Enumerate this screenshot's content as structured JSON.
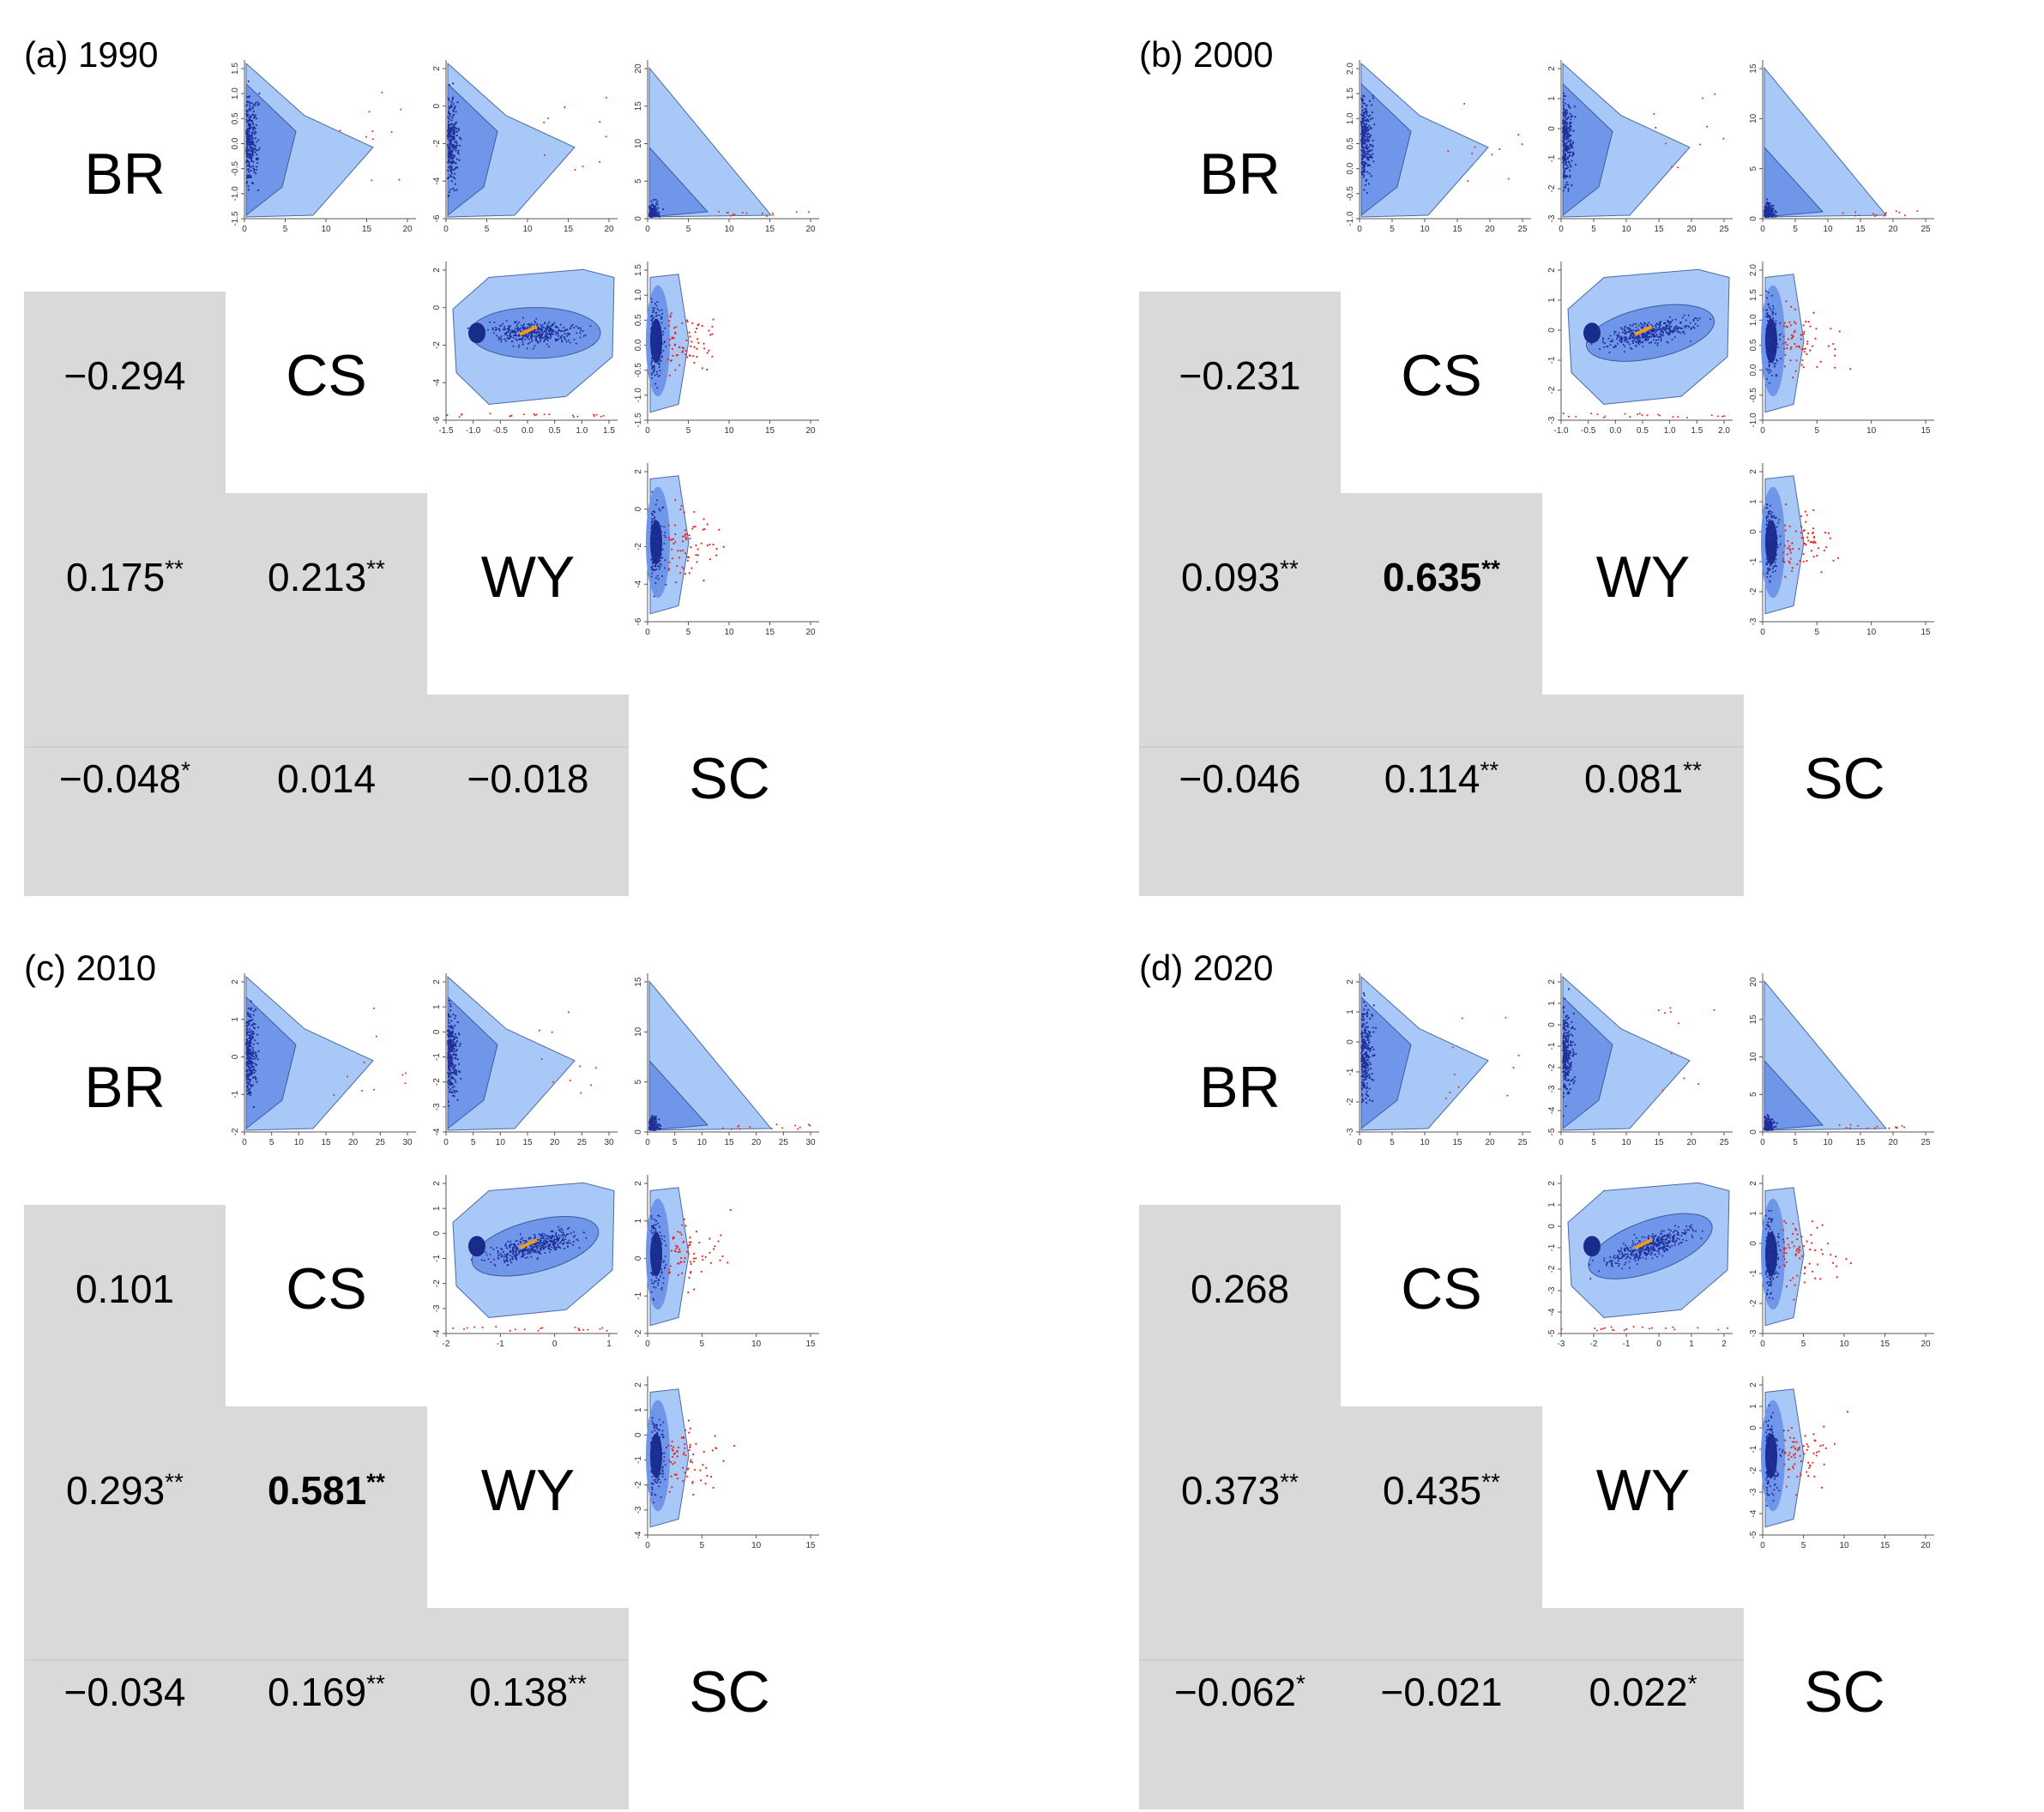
{
  "colors": {
    "outer_hull": "#a8c8f8",
    "inner_hull": "#6f96e8",
    "core": "#1a2c8a",
    "points": "#1f2f9a",
    "outliers": "#e8261f",
    "center": "#f29b1a",
    "table_gray": "#d9d9d9"
  },
  "variables": [
    "BR",
    "CS",
    "WY",
    "SC"
  ],
  "chart_data": [
    {
      "type": "scatter-matrix",
      "title": "(a) 1990",
      "variables": [
        "BR",
        "CS",
        "WY",
        "SC"
      ],
      "correlations": [
        {
          "pair": [
            "BR",
            "CS"
          ],
          "value": "−0.294",
          "sig": "",
          "bold": false
        },
        {
          "pair": [
            "BR",
            "WY"
          ],
          "value": "0.175",
          "sig": "**",
          "bold": false
        },
        {
          "pair": [
            "CS",
            "WY"
          ],
          "value": "0.213",
          "sig": "**",
          "bold": false
        },
        {
          "pair": [
            "BR",
            "SC"
          ],
          "value": "−0.048",
          "sig": "*",
          "bold": false
        },
        {
          "pair": [
            "CS",
            "SC"
          ],
          "value": "0.014",
          "sig": "",
          "bold": false
        },
        {
          "pair": [
            "WY",
            "SC"
          ],
          "value": "−0.018",
          "sig": "",
          "bold": false
        }
      ],
      "scatter_axes": [
        {
          "pair": [
            "BR",
            "CS"
          ],
          "xticks": [
            "0",
            "5",
            "10",
            "15",
            "20"
          ],
          "yticks": [
            "-1.5",
            "-1.0",
            "-0.5",
            "0.0",
            "0.5",
            "1.0",
            "1.5"
          ]
        },
        {
          "pair": [
            "BR",
            "WY"
          ],
          "xticks": [
            "0",
            "5",
            "10",
            "15",
            "20"
          ],
          "yticks": [
            "-6",
            "-4",
            "-2",
            "0",
            "2"
          ]
        },
        {
          "pair": [
            "BR",
            "SC"
          ],
          "xticks": [
            "0",
            "5",
            "10",
            "15",
            "20"
          ],
          "yticks": [
            "0",
            "5",
            "10",
            "15",
            "20"
          ]
        },
        {
          "pair": [
            "CS",
            "WY"
          ],
          "xticks": [
            "-1.5",
            "-1.0",
            "-0.5",
            "0.0",
            "0.5",
            "1.0",
            "1.5"
          ],
          "yticks": [
            "-6",
            "-4",
            "-2",
            "0",
            "2"
          ]
        },
        {
          "pair": [
            "CS",
            "SC"
          ],
          "xticks": [
            "0",
            "5",
            "10",
            "15",
            "20"
          ],
          "yticks": [
            "-1.5",
            "-1.0",
            "-0.5",
            "0.0",
            "0.5",
            "1.0",
            "1.5"
          ]
        },
        {
          "pair": [
            "WY",
            "SC"
          ],
          "xticks": [
            "0",
            "5",
            "10",
            "15",
            "20"
          ],
          "yticks": [
            "-6",
            "-4",
            "-2",
            "0",
            "2"
          ]
        }
      ]
    },
    {
      "type": "scatter-matrix",
      "title": "(b) 2000",
      "variables": [
        "BR",
        "CS",
        "WY",
        "SC"
      ],
      "correlations": [
        {
          "pair": [
            "BR",
            "CS"
          ],
          "value": "−0.231",
          "sig": "",
          "bold": false
        },
        {
          "pair": [
            "BR",
            "WY"
          ],
          "value": "0.093",
          "sig": "**",
          "bold": false
        },
        {
          "pair": [
            "CS",
            "WY"
          ],
          "value": "0.635",
          "sig": "**",
          "bold": true
        },
        {
          "pair": [
            "BR",
            "SC"
          ],
          "value": "−0.046",
          "sig": "",
          "bold": false
        },
        {
          "pair": [
            "CS",
            "SC"
          ],
          "value": "0.114",
          "sig": "**",
          "bold": false
        },
        {
          "pair": [
            "WY",
            "SC"
          ],
          "value": "0.081",
          "sig": "**",
          "bold": false
        }
      ],
      "scatter_axes": [
        {
          "pair": [
            "BR",
            "CS"
          ],
          "xticks": [
            "0",
            "5",
            "10",
            "15",
            "20",
            "25"
          ],
          "yticks": [
            "-1.0",
            "-0.5",
            "0.0",
            "0.5",
            "1.0",
            "1.5",
            "2.0"
          ]
        },
        {
          "pair": [
            "BR",
            "WY"
          ],
          "xticks": [
            "0",
            "5",
            "10",
            "15",
            "20",
            "25"
          ],
          "yticks": [
            "-3",
            "-2",
            "-1",
            "0",
            "1",
            "2"
          ]
        },
        {
          "pair": [
            "BR",
            "SC"
          ],
          "xticks": [
            "0",
            "5",
            "10",
            "15",
            "20",
            "25"
          ],
          "yticks": [
            "0",
            "5",
            "10",
            "15"
          ]
        },
        {
          "pair": [
            "CS",
            "WY"
          ],
          "xticks": [
            "-1.0",
            "-0.5",
            "0.0",
            "0.5",
            "1.0",
            "1.5",
            "2.0"
          ],
          "yticks": [
            "-3",
            "-2",
            "-1",
            "0",
            "1",
            "2"
          ]
        },
        {
          "pair": [
            "CS",
            "SC"
          ],
          "xticks": [
            "0",
            "5",
            "10",
            "15"
          ],
          "yticks": [
            "-1.0",
            "-0.5",
            "0.0",
            "0.5",
            "1.0",
            "1.5",
            "2.0"
          ]
        },
        {
          "pair": [
            "WY",
            "SC"
          ],
          "xticks": [
            "0",
            "5",
            "10",
            "15"
          ],
          "yticks": [
            "-3",
            "-2",
            "-1",
            "0",
            "1",
            "2"
          ]
        }
      ]
    },
    {
      "type": "scatter-matrix",
      "title": "(c) 2010",
      "variables": [
        "BR",
        "CS",
        "WY",
        "SC"
      ],
      "correlations": [
        {
          "pair": [
            "BR",
            "CS"
          ],
          "value": "0.101",
          "sig": "",
          "bold": false
        },
        {
          "pair": [
            "BR",
            "WY"
          ],
          "value": "0.293",
          "sig": "**",
          "bold": false
        },
        {
          "pair": [
            "CS",
            "WY"
          ],
          "value": "0.581",
          "sig": "**",
          "bold": true
        },
        {
          "pair": [
            "BR",
            "SC"
          ],
          "value": "−0.034",
          "sig": "",
          "bold": false
        },
        {
          "pair": [
            "CS",
            "SC"
          ],
          "value": "0.169",
          "sig": "**",
          "bold": false
        },
        {
          "pair": [
            "WY",
            "SC"
          ],
          "value": "0.138",
          "sig": "**",
          "bold": false
        }
      ],
      "scatter_axes": [
        {
          "pair": [
            "BR",
            "CS"
          ],
          "xticks": [
            "0",
            "5",
            "10",
            "15",
            "20",
            "25",
            "30"
          ],
          "yticks": [
            "-2",
            "-1",
            "0",
            "1",
            "2"
          ]
        },
        {
          "pair": [
            "BR",
            "WY"
          ],
          "xticks": [
            "0",
            "5",
            "10",
            "15",
            "20",
            "25",
            "30"
          ],
          "yticks": [
            "-4",
            "-3",
            "-2",
            "-1",
            "0",
            "1",
            "2"
          ]
        },
        {
          "pair": [
            "BR",
            "SC"
          ],
          "xticks": [
            "0",
            "5",
            "10",
            "15",
            "20",
            "25",
            "30"
          ],
          "yticks": [
            "0",
            "5",
            "10",
            "15"
          ]
        },
        {
          "pair": [
            "CS",
            "WY"
          ],
          "xticks": [
            "-2",
            "-1",
            "0",
            "1"
          ],
          "yticks": [
            "-4",
            "-3",
            "-2",
            "-1",
            "0",
            "1",
            "2"
          ]
        },
        {
          "pair": [
            "CS",
            "SC"
          ],
          "xticks": [
            "0",
            "5",
            "10",
            "15"
          ],
          "yticks": [
            "-2",
            "-1",
            "0",
            "1",
            "2"
          ]
        },
        {
          "pair": [
            "WY",
            "SC"
          ],
          "xticks": [
            "0",
            "5",
            "10",
            "15"
          ],
          "yticks": [
            "-4",
            "-3",
            "-2",
            "-1",
            "0",
            "1",
            "2"
          ]
        }
      ]
    },
    {
      "type": "scatter-matrix",
      "title": "(d) 2020",
      "variables": [
        "BR",
        "CS",
        "WY",
        "SC"
      ],
      "correlations": [
        {
          "pair": [
            "BR",
            "CS"
          ],
          "value": "0.268",
          "sig": "",
          "bold": false
        },
        {
          "pair": [
            "BR",
            "WY"
          ],
          "value": "0.373",
          "sig": "**",
          "bold": false
        },
        {
          "pair": [
            "CS",
            "WY"
          ],
          "value": "0.435",
          "sig": "**",
          "bold": false
        },
        {
          "pair": [
            "BR",
            "SC"
          ],
          "value": "−0.062",
          "sig": "*",
          "bold": false
        },
        {
          "pair": [
            "CS",
            "SC"
          ],
          "value": "−0.021",
          "sig": "",
          "bold": false
        },
        {
          "pair": [
            "WY",
            "SC"
          ],
          "value": "0.022",
          "sig": "*",
          "bold": false
        }
      ],
      "scatter_axes": [
        {
          "pair": [
            "BR",
            "CS"
          ],
          "xticks": [
            "0",
            "5",
            "10",
            "15",
            "20",
            "25"
          ],
          "yticks": [
            "-3",
            "-2",
            "-1",
            "0",
            "1",
            "2"
          ]
        },
        {
          "pair": [
            "BR",
            "WY"
          ],
          "xticks": [
            "0",
            "5",
            "10",
            "15",
            "20",
            "25"
          ],
          "yticks": [
            "-5",
            "-4",
            "-3",
            "-2",
            "-1",
            "0",
            "1",
            "2"
          ]
        },
        {
          "pair": [
            "BR",
            "SC"
          ],
          "xticks": [
            "0",
            "5",
            "10",
            "15",
            "20",
            "25"
          ],
          "yticks": [
            "0",
            "5",
            "10",
            "15",
            "20"
          ]
        },
        {
          "pair": [
            "CS",
            "WY"
          ],
          "xticks": [
            "-3",
            "-2",
            "-1",
            "0",
            "1",
            "2"
          ],
          "yticks": [
            "-5",
            "-4",
            "-3",
            "-2",
            "-1",
            "0",
            "1",
            "2"
          ]
        },
        {
          "pair": [
            "CS",
            "SC"
          ],
          "xticks": [
            "0",
            "5",
            "10",
            "15",
            "20"
          ],
          "yticks": [
            "-3",
            "-2",
            "-1",
            "0",
            "1",
            "2"
          ]
        },
        {
          "pair": [
            "WY",
            "SC"
          ],
          "xticks": [
            "0",
            "5",
            "10",
            "15",
            "20"
          ],
          "yticks": [
            "-5",
            "-4",
            "-3",
            "-2",
            "-1",
            "0",
            "1",
            "2"
          ]
        }
      ]
    }
  ]
}
